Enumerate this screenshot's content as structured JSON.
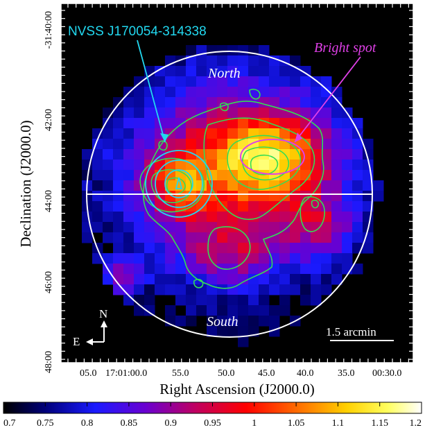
{
  "figure": {
    "source_name": "NVSS J170054-314338",
    "bright_spot_label": "Bright spot",
    "north_label": "North",
    "south_label": "South",
    "scale_label": "1.5 arcmin",
    "compass_n": "N",
    "compass_e": "E",
    "xlabel": "Right Ascension (J2000.0)",
    "ylabel": "Declination (J2000.0)",
    "ra_ticks": [
      "05.0",
      "17:01:00.0",
      "55.0",
      "50.0",
      "45.0",
      "40.0",
      "35.0",
      "00:30.0"
    ],
    "dec_ticks": [
      "-31:40:00",
      "42:00",
      "44:00",
      "46:00",
      "48:00"
    ],
    "colorbar_ticks": [
      "0.7",
      "0.75",
      "0.8",
      "0.85",
      "0.9",
      "0.95",
      "1",
      "1.05",
      "1.1",
      "1.15",
      "1.2"
    ],
    "colormap_colors": [
      "#000000",
      "#00007a",
      "#1a1aff",
      "#6a00d0",
      "#c00060",
      "#ff0000",
      "#ff6a00",
      "#ffd000",
      "#ffff60",
      "#ffffff"
    ],
    "label_color_cyan": "#22d8f0",
    "label_color_magenta": "#e040e8",
    "contour_color": "#33dd55",
    "colorbar_range": [
      0.7,
      1.2
    ]
  }
}
